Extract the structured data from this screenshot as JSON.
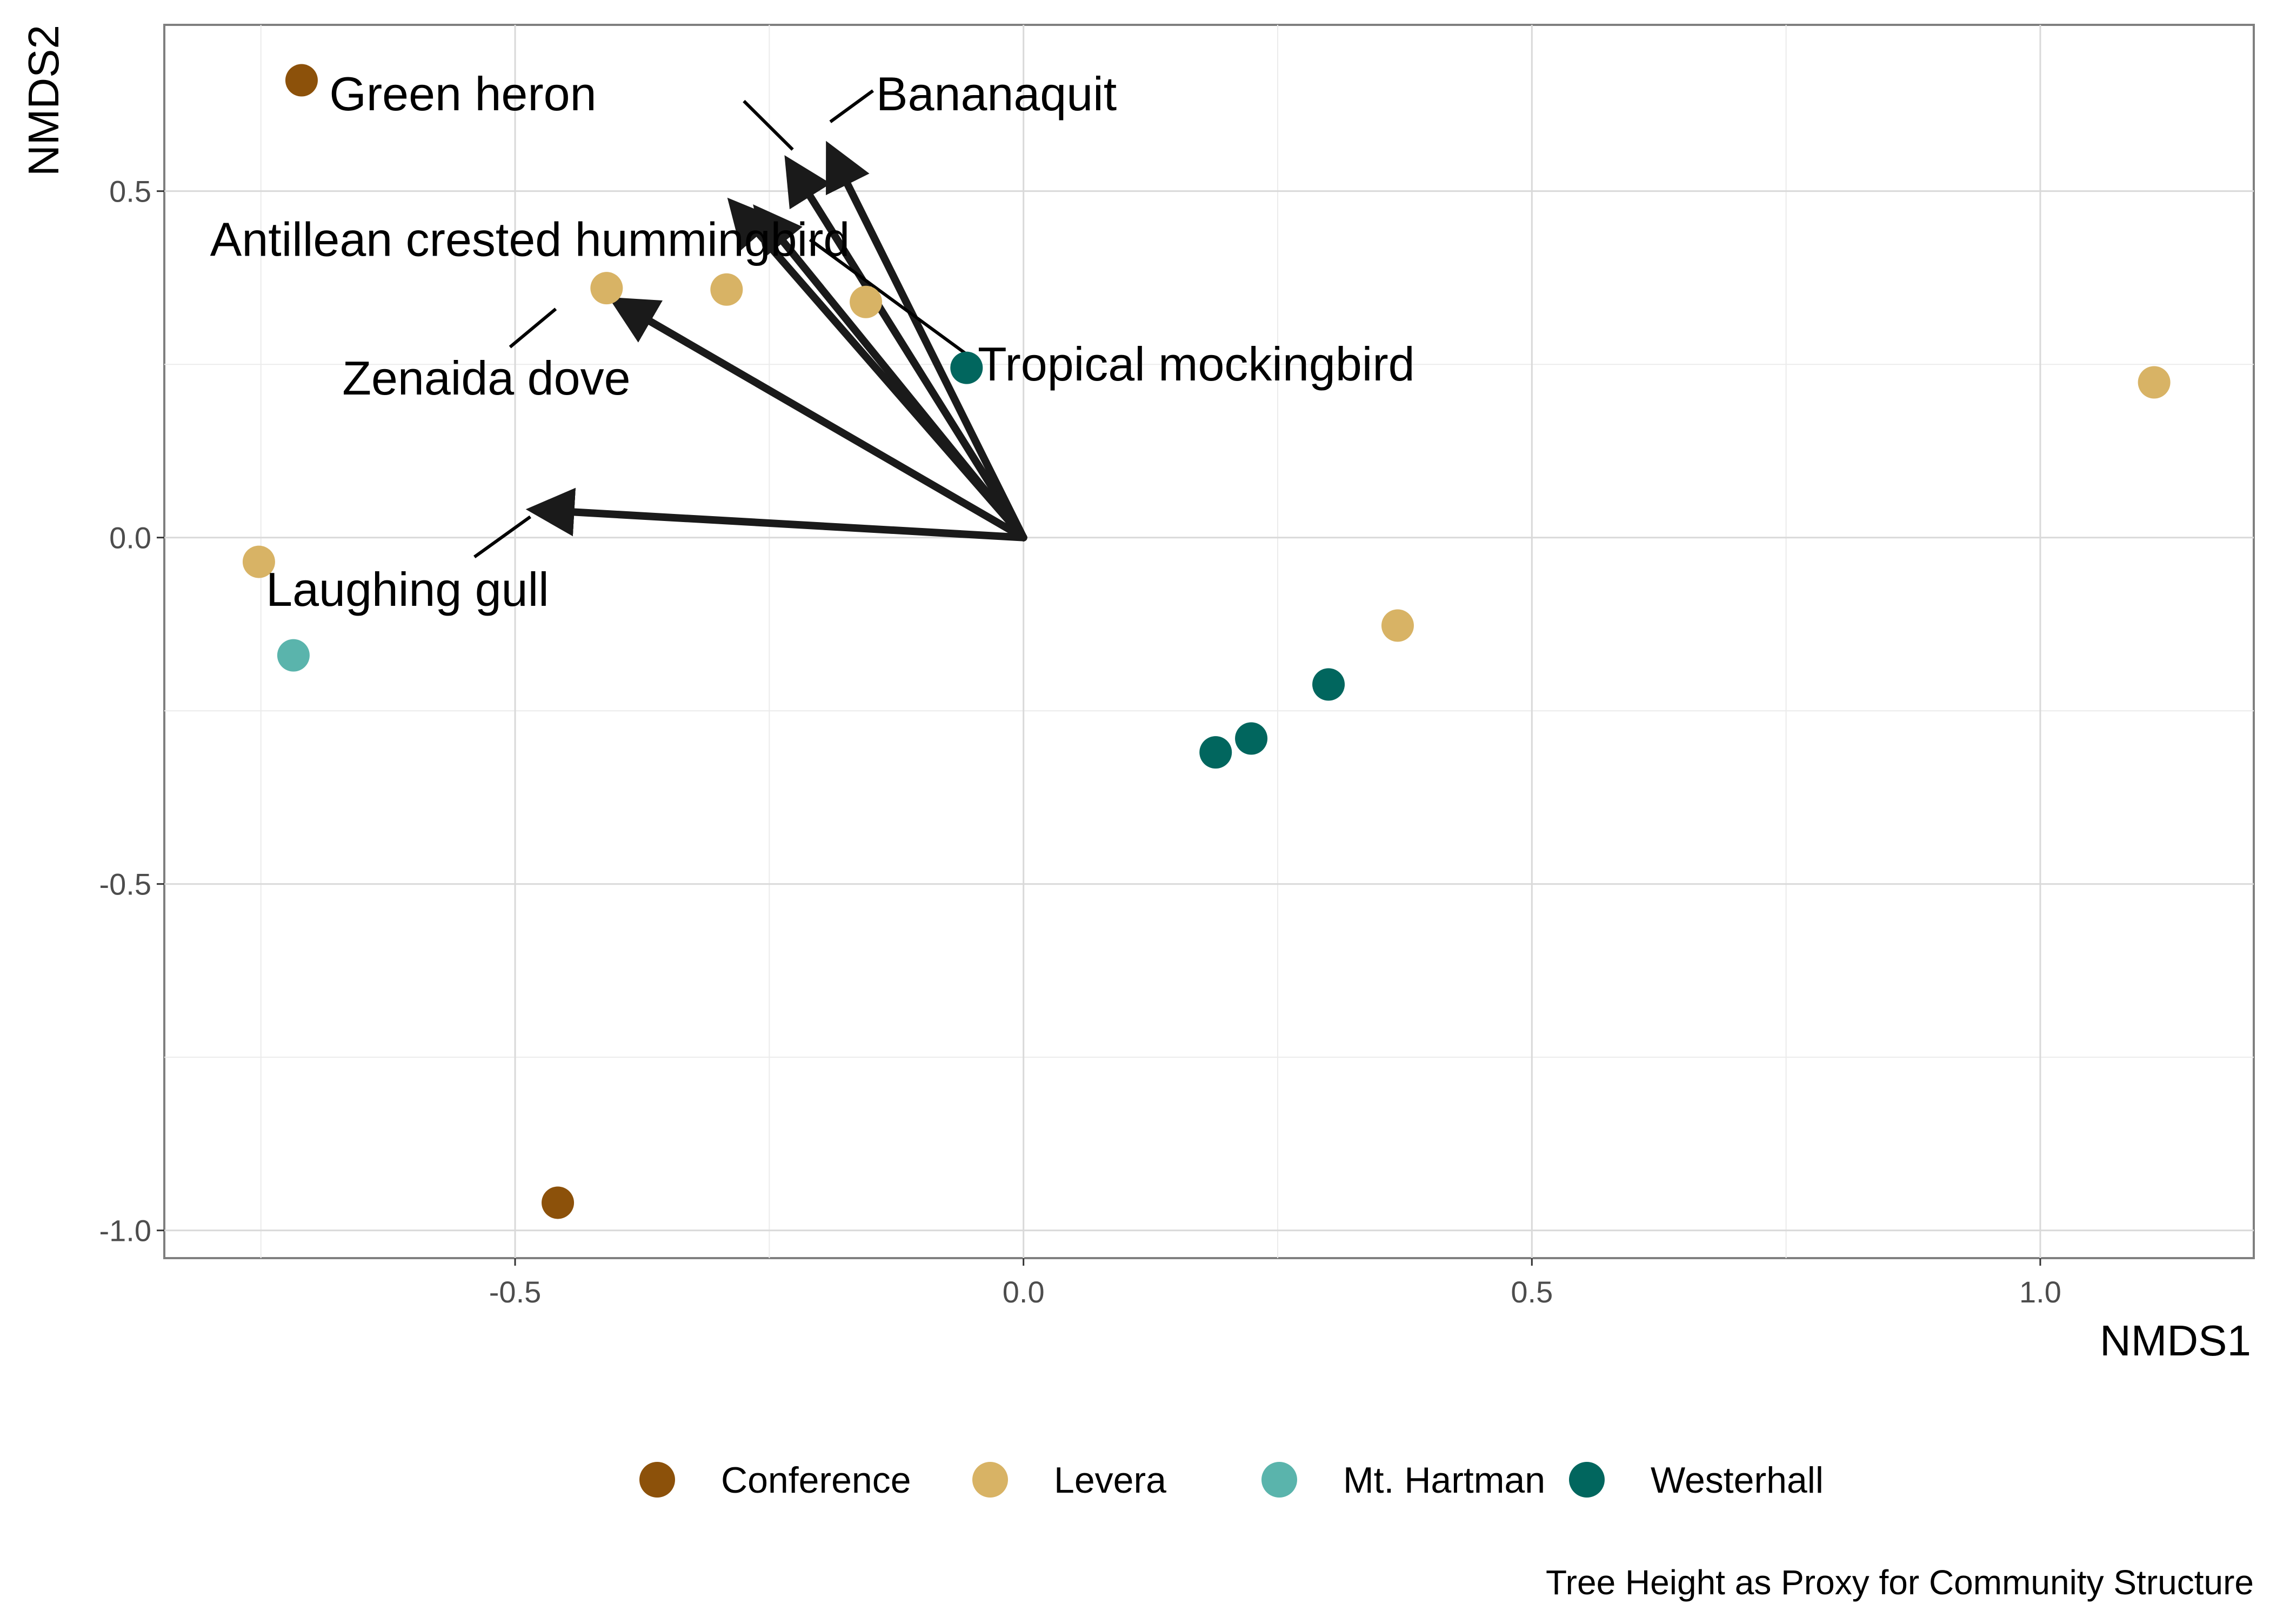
{
  "chart_data": {
    "type": "scatter",
    "title": "",
    "caption": "Tree Height as Proxy for Community Structure",
    "xlabel": "NMDS1",
    "ylabel": "NMDS2",
    "xlim": [
      -0.845,
      1.21
    ],
    "ylim": [
      -1.04,
      0.74
    ],
    "grid": true,
    "x_ticks": [
      -0.5,
      0.0,
      0.5,
      1.0
    ],
    "x_tick_labels": [
      "-0.5",
      "0.0",
      "0.5",
      "1.0"
    ],
    "y_ticks": [
      -1.0,
      -0.5,
      0.0,
      0.5
    ],
    "y_tick_labels": [
      "-1.0",
      "-0.5",
      "0.0",
      "0.5"
    ],
    "legend_position": "bottom",
    "groups": [
      {
        "name": "Conference",
        "color": "#8C510A"
      },
      {
        "name": "Levera",
        "color": "#D8B365"
      },
      {
        "name": "Mt. Hartman",
        "color": "#5AB4AC"
      },
      {
        "name": "Westerhall",
        "color": "#01665E"
      }
    ],
    "points": [
      {
        "x": -0.71,
        "y": 0.66,
        "group": "Conference"
      },
      {
        "x": -0.458,
        "y": -0.96,
        "group": "Conference"
      },
      {
        "x": -0.41,
        "y": 0.36,
        "group": "Levera"
      },
      {
        "x": -0.292,
        "y": 0.358,
        "group": "Levera"
      },
      {
        "x": -0.155,
        "y": 0.34,
        "group": "Levera"
      },
      {
        "x": -0.752,
        "y": -0.035,
        "group": "Levera"
      },
      {
        "x": 0.368,
        "y": -0.127,
        "group": "Levera"
      },
      {
        "x": 1.112,
        "y": 0.224,
        "group": "Levera"
      },
      {
        "x": -0.718,
        "y": -0.17,
        "group": "Mt. Hartman"
      },
      {
        "x": -0.056,
        "y": 0.245,
        "group": "Westerhall"
      },
      {
        "x": 0.3,
        "y": -0.212,
        "group": "Westerhall"
      },
      {
        "x": 0.224,
        "y": -0.29,
        "group": "Westerhall"
      },
      {
        "x": 0.189,
        "y": -0.31,
        "group": "Westerhall"
      }
    ],
    "vectors": [
      {
        "species": "Green heron",
        "x": -0.23,
        "y": 0.54,
        "label_x": -0.42,
        "label_y": 0.64,
        "label_anchor": "end"
      },
      {
        "species": "Bananaquit",
        "x": -0.19,
        "y": 0.56,
        "label_x": -0.145,
        "label_y": 0.64,
        "label_anchor": "start"
      },
      {
        "species": "Antillean crested hummingbird",
        "x": -0.285,
        "y": 0.48,
        "label_x": -0.8,
        "label_y": 0.43,
        "label_anchor": "start"
      },
      {
        "species": "Tropical mockingbird",
        "x": -0.26,
        "y": 0.47,
        "label_x": -0.045,
        "label_y": 0.25,
        "label_anchor": "start"
      },
      {
        "species": "Zenaida dove",
        "x": -0.4,
        "y": 0.34,
        "label_x": -0.67,
        "label_y": 0.23,
        "label_anchor": "start"
      },
      {
        "species": "Laughing gull",
        "x": -0.48,
        "y": 0.04,
        "label_x": -0.745,
        "label_y": -0.075,
        "label_anchor": "start"
      }
    ],
    "label_leaders": [
      {
        "species": "Green heron",
        "from": [
          -0.275,
          0.63
        ],
        "to": [
          -0.227,
          0.56
        ]
      },
      {
        "species": "Bananaquit",
        "from": [
          -0.148,
          0.645
        ],
        "to": [
          -0.19,
          0.6
        ]
      },
      {
        "species": "Tropical mockingbird",
        "from": [
          -0.047,
          0.255
        ],
        "to": [
          -0.21,
          0.43
        ]
      },
      {
        "species": "Zenaida dove",
        "from": [
          -0.505,
          0.275
        ],
        "to": [
          -0.46,
          0.33
        ]
      },
      {
        "species": "Laughing gull",
        "from": [
          -0.54,
          -0.028
        ],
        "to": [
          -0.485,
          0.03
        ]
      }
    ]
  }
}
